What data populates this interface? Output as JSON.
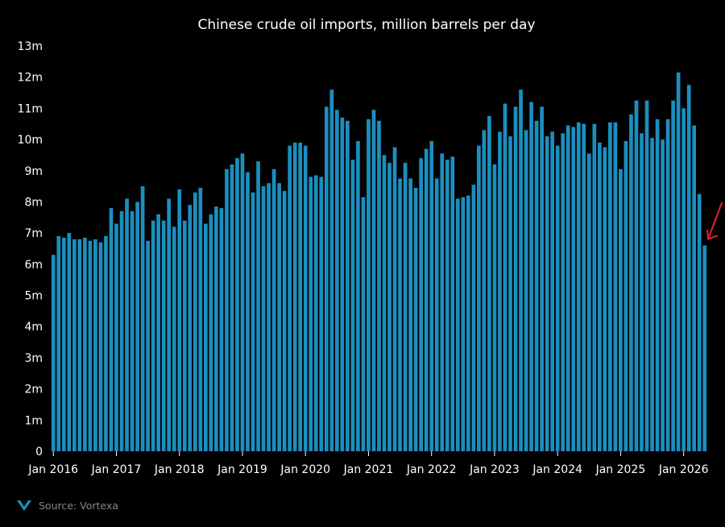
{
  "chart_data": {
    "type": "bar",
    "title": "Chinese crude oil imports, million barrels per day",
    "xlabel": "",
    "ylabel": "",
    "ylim": [
      0,
      13
    ],
    "yticks": [
      {
        "value": 0,
        "label": "0"
      },
      {
        "value": 1,
        "label": "1m"
      },
      {
        "value": 2,
        "label": "2m"
      },
      {
        "value": 3,
        "label": "3m"
      },
      {
        "value": 4,
        "label": "4m"
      },
      {
        "value": 5,
        "label": "5m"
      },
      {
        "value": 6,
        "label": "6m"
      },
      {
        "value": 7,
        "label": "7m"
      },
      {
        "value": 8,
        "label": "8m"
      },
      {
        "value": 9,
        "label": "9m"
      },
      {
        "value": 10,
        "label": "10m"
      },
      {
        "value": 11,
        "label": "11m"
      },
      {
        "value": 12,
        "label": "12m"
      },
      {
        "value": 13,
        "label": "13m"
      }
    ],
    "xticks": [
      {
        "label": "Jan 2016",
        "index": 0
      },
      {
        "label": "Jan 2017",
        "index": 12
      },
      {
        "label": "Jan 2018",
        "index": 24
      },
      {
        "label": "Jan 2019",
        "index": 36
      },
      {
        "label": "Jan 2020",
        "index": 48
      },
      {
        "label": "Jan 2021",
        "index": 60
      },
      {
        "label": "Jan 2022",
        "index": 72
      },
      {
        "label": "Jan 2023",
        "index": 84
      },
      {
        "label": "Jan 2024",
        "index": 96
      },
      {
        "label": "Jan 2025",
        "index": 108
      },
      {
        "label": "Jan 2026",
        "index": 120
      }
    ],
    "grid": false,
    "bar_color": "#1b8fbf",
    "annotation": {
      "type": "arrow",
      "target_index": 124,
      "color": "#e8202a"
    },
    "categories": [
      "2016-01",
      "2016-02",
      "2016-03",
      "2016-04",
      "2016-05",
      "2016-06",
      "2016-07",
      "2016-08",
      "2016-09",
      "2016-10",
      "2016-11",
      "2016-12",
      "2017-01",
      "2017-02",
      "2017-03",
      "2017-04",
      "2017-05",
      "2017-06",
      "2017-07",
      "2017-08",
      "2017-09",
      "2017-10",
      "2017-11",
      "2017-12",
      "2018-01",
      "2018-02",
      "2018-03",
      "2018-04",
      "2018-05",
      "2018-06",
      "2018-07",
      "2018-08",
      "2018-09",
      "2018-10",
      "2018-11",
      "2018-12",
      "2019-01",
      "2019-02",
      "2019-03",
      "2019-04",
      "2019-05",
      "2019-06",
      "2019-07",
      "2019-08",
      "2019-09",
      "2019-10",
      "2019-11",
      "2019-12",
      "2020-01",
      "2020-02",
      "2020-03",
      "2020-04",
      "2020-05",
      "2020-06",
      "2020-07",
      "2020-08",
      "2020-09",
      "2020-10",
      "2020-11",
      "2020-12",
      "2021-01",
      "2021-02",
      "2021-03",
      "2021-04",
      "2021-05",
      "2021-06",
      "2021-07",
      "2021-08",
      "2021-09",
      "2021-10",
      "2021-11",
      "2021-12",
      "2022-01",
      "2022-02",
      "2022-03",
      "2022-04",
      "2022-05",
      "2022-06",
      "2022-07",
      "2022-08",
      "2022-09",
      "2022-10",
      "2022-11",
      "2022-12",
      "2023-01",
      "2023-02",
      "2023-03",
      "2023-04",
      "2023-05",
      "2023-06",
      "2023-07",
      "2023-08",
      "2023-09",
      "2023-10",
      "2023-11",
      "2023-12",
      "2024-01",
      "2024-02",
      "2024-03",
      "2024-04",
      "2024-05",
      "2024-06",
      "2024-07",
      "2024-08",
      "2024-09",
      "2024-10",
      "2024-11",
      "2024-12",
      "2025-01",
      "2025-02",
      "2025-03",
      "2025-04",
      "2025-05",
      "2025-06",
      "2025-07",
      "2025-08",
      "2025-09",
      "2025-10",
      "2025-11",
      "2025-12",
      "2026-01",
      "2026-02",
      "2026-03",
      "2026-04",
      "2026-05"
    ],
    "values": [
      6.3,
      6.9,
      6.85,
      7.0,
      6.8,
      6.8,
      6.85,
      6.75,
      6.8,
      6.7,
      6.9,
      7.8,
      7.3,
      7.7,
      8.1,
      7.7,
      8.0,
      8.5,
      6.75,
      7.4,
      7.6,
      7.4,
      8.1,
      7.2,
      8.4,
      7.4,
      7.9,
      8.3,
      8.45,
      7.3,
      7.6,
      7.85,
      7.8,
      9.05,
      9.2,
      9.4,
      9.55,
      8.95,
      8.3,
      9.3,
      8.5,
      8.6,
      9.05,
      8.6,
      8.35,
      9.8,
      9.9,
      9.9,
      9.8,
      8.8,
      8.85,
      8.8,
      11.05,
      11.6,
      10.95,
      10.7,
      10.6,
      9.35,
      9.95,
      8.15,
      10.65,
      10.95,
      10.6,
      9.5,
      9.25,
      9.75,
      8.75,
      9.25,
      8.75,
      8.45,
      9.4,
      9.7,
      9.95,
      8.75,
      9.55,
      9.35,
      9.45,
      8.1,
      8.15,
      8.2,
      8.55,
      9.8,
      10.3,
      10.75,
      9.2,
      10.25,
      11.15,
      10.1,
      11.05,
      11.6,
      10.3,
      11.2,
      10.6,
      11.05,
      10.1,
      10.25,
      9.8,
      10.2,
      10.45,
      10.4,
      10.55,
      10.5,
      9.55,
      10.5,
      9.9,
      9.75,
      10.55,
      10.55,
      9.05,
      9.95,
      10.8,
      11.25,
      10.2,
      11.25,
      10.05,
      10.65,
      10.0,
      10.65,
      11.25,
      12.15,
      11.0,
      11.75,
      10.45,
      8.25,
      6.6
    ]
  },
  "source": {
    "text": "Source: Vortexa",
    "logo_icon": "vortexa-logo",
    "logo_color": "#1b8fbf"
  }
}
